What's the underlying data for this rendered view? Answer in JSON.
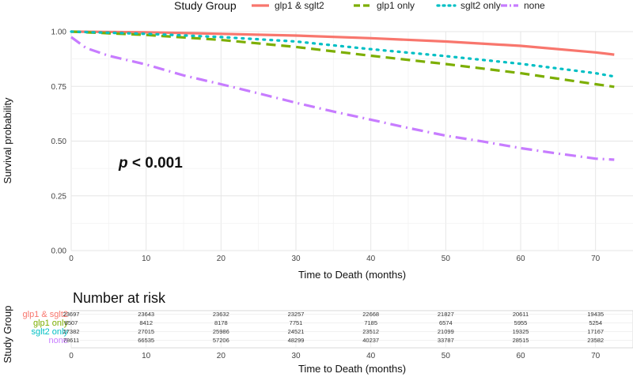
{
  "chart_data": {
    "type": "line",
    "legend": {
      "title": "Study Group",
      "position": "top",
      "entries": [
        "glp1 & sglt2",
        "glp1 only",
        "sglt2 only",
        "none"
      ]
    },
    "xlabel": "Time to Death (months)",
    "ylabel": "Survival probability",
    "xlim": [
      0,
      75
    ],
    "ylim": [
      0,
      1.0
    ],
    "x_ticks": [
      0,
      10,
      20,
      30,
      40,
      50,
      60,
      70
    ],
    "y_ticks": [
      "0.00",
      "0.25",
      "0.50",
      "0.75",
      "1.00"
    ],
    "grid": true,
    "annotation": {
      "italic_part": "p",
      "rest": " < 0.001"
    },
    "series": [
      {
        "name": "glp1 & sglt2",
        "color": "#F8766D",
        "style": "solid",
        "x": [
          0,
          10,
          20,
          30,
          40,
          50,
          60,
          70,
          72.5
        ],
        "y": [
          1.0,
          0.997,
          0.99,
          0.982,
          0.97,
          0.955,
          0.935,
          0.905,
          0.895
        ]
      },
      {
        "name": "glp1 only",
        "color": "#7CAE00",
        "style": "dashed",
        "x": [
          0,
          10,
          20,
          30,
          40,
          50,
          60,
          70,
          72.5
        ],
        "y": [
          1.0,
          0.985,
          0.962,
          0.93,
          0.89,
          0.852,
          0.81,
          0.76,
          0.748
        ]
      },
      {
        "name": "sglt2 only",
        "color": "#00BFC4",
        "style": "dotted",
        "x": [
          0,
          10,
          20,
          30,
          40,
          50,
          60,
          70,
          72.5
        ],
        "y": [
          1.0,
          0.99,
          0.975,
          0.955,
          0.92,
          0.888,
          0.853,
          0.81,
          0.795
        ]
      },
      {
        "name": "none",
        "color": "#C77CFF",
        "style": "dashdot",
        "x": [
          0,
          2,
          5,
          10,
          15,
          20,
          25,
          30,
          35,
          40,
          45,
          50,
          55,
          60,
          65,
          70,
          72.5
        ],
        "y": [
          0.975,
          0.925,
          0.89,
          0.85,
          0.8,
          0.76,
          0.718,
          0.675,
          0.635,
          0.598,
          0.56,
          0.525,
          0.498,
          0.468,
          0.443,
          0.42,
          0.415
        ]
      }
    ],
    "risk_table": {
      "title": "Number at risk",
      "ylabel": "Study Group",
      "xlabel": "Time to Death (months)",
      "times": [
        0,
        10,
        20,
        30,
        40,
        50,
        60,
        70
      ],
      "rows": [
        {
          "name": "glp1 & sglt2",
          "color": "#F8766D",
          "values": [
            "23697",
            "23643",
            "23632",
            "23257",
            "22668",
            "21827",
            "20611",
            "19435"
          ]
        },
        {
          "name": "glp1 only",
          "color": "#7CAE00",
          "values": [
            "8507",
            "8412",
            "8178",
            "7751",
            "7185",
            "6574",
            "5955",
            "5254"
          ]
        },
        {
          "name": "sglt2 only",
          "color": "#00BFC4",
          "values": [
            "27382",
            "27015",
            "25986",
            "24521",
            "23512",
            "21099",
            "19325",
            "17167"
          ]
        },
        {
          "name": "none",
          "color": "#C77CFF",
          "values": [
            "78611",
            "66535",
            "57206",
            "48299",
            "40237",
            "33787",
            "28515",
            "23582"
          ]
        }
      ]
    }
  }
}
